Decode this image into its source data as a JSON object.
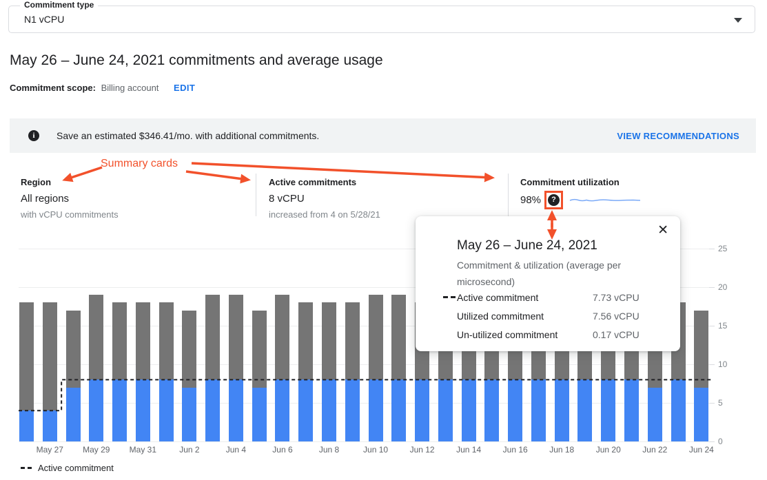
{
  "commitment_type_field": {
    "label": "Commitment type",
    "value": "N1 vCPU"
  },
  "page_title": "May 26 – June 24, 2021 commitments and average usage",
  "scope": {
    "label": "Commitment scope:",
    "value": "Billing account",
    "edit_label": "EDIT"
  },
  "banner": {
    "message": "Save an estimated $346.41/mo. with additional commitments.",
    "action_label": "VIEW RECOMMENDATIONS"
  },
  "icons": {
    "info_glyph": "i",
    "help_glyph": "?",
    "close_glyph": "✕"
  },
  "annotation": {
    "label": "Summary cards",
    "color": "#f2512b"
  },
  "summary_cards": [
    {
      "title": "Region",
      "value": "All regions",
      "subtext": "with vCPU commitments"
    },
    {
      "title": "Active commitments",
      "value": "8 vCPU",
      "subtext": "increased from 4 on 5/28/21"
    },
    {
      "title": "Commitment utilization",
      "value": "98%"
    }
  ],
  "tooltip": {
    "title": "May 26 – June 24, 2021",
    "subtitle": "Commitment & utilization (average per microsecond)",
    "rows": [
      {
        "swatch": "dashed-line",
        "label": "Active commitment",
        "value": "7.73 vCPU"
      },
      {
        "swatch": "none",
        "label": "Utilized commitment",
        "value": "7.56 vCPU"
      },
      {
        "swatch": "none",
        "label": "Un-utilized commitment",
        "value": "0.17 vCPU"
      }
    ]
  },
  "legend": {
    "label": "Active commitment"
  },
  "chart_data": {
    "type": "bar",
    "stacked": true,
    "title": "",
    "xlabel": "",
    "ylabel": "",
    "ylim": [
      0,
      25
    ],
    "yticks": [
      0,
      5,
      10,
      15,
      20,
      25
    ],
    "grid": true,
    "legend_position": "bottom-left",
    "x": [
      "May 26",
      "May 27",
      "May 28",
      "May 29",
      "May 30",
      "May 31",
      "Jun 1",
      "Jun 2",
      "Jun 3",
      "Jun 4",
      "Jun 5",
      "Jun 6",
      "Jun 7",
      "Jun 8",
      "Jun 9",
      "Jun 10",
      "Jun 11",
      "Jun 12",
      "Jun 13",
      "Jun 14",
      "Jun 15",
      "Jun 16",
      "Jun 17",
      "Jun 18",
      "Jun 19",
      "Jun 20",
      "Jun 21",
      "Jun 22",
      "Jun 23",
      "Jun 24"
    ],
    "x_tick_labels": [
      "May 27",
      "May 29",
      "May 31",
      "Jun 2",
      "Jun 4",
      "Jun 6",
      "Jun 8",
      "Jun 10",
      "Jun 12",
      "Jun 14",
      "Jun 16",
      "Jun 18",
      "Jun 20",
      "Jun 22",
      "Jun 24"
    ],
    "series": [
      {
        "name": "Utilized commitment",
        "color": "#4285f4",
        "values": [
          4,
          4,
          7,
          8,
          8,
          8,
          8,
          7,
          8,
          8,
          7,
          8,
          8,
          8,
          8,
          8,
          8,
          8,
          8,
          8,
          8,
          8,
          8,
          8,
          8,
          8,
          8,
          7,
          8,
          7
        ]
      },
      {
        "name": "Usage above utilized commitment",
        "color": "#757575",
        "values": [
          14,
          14,
          10,
          11,
          10,
          10,
          10,
          10,
          11,
          11,
          10,
          11,
          10,
          10,
          10,
          11,
          11,
          10,
          10,
          10,
          10,
          10,
          10,
          10,
          10,
          10,
          10,
          11,
          10,
          10
        ]
      }
    ],
    "line": {
      "name": "Active commitment",
      "style": "dashed",
      "color": "#202124",
      "values": [
        4,
        4,
        8,
        8,
        8,
        8,
        8,
        8,
        8,
        8,
        8,
        8,
        8,
        8,
        8,
        8,
        8,
        8,
        8,
        8,
        8,
        8,
        8,
        8,
        8,
        8,
        8,
        8,
        8,
        8
      ]
    }
  }
}
